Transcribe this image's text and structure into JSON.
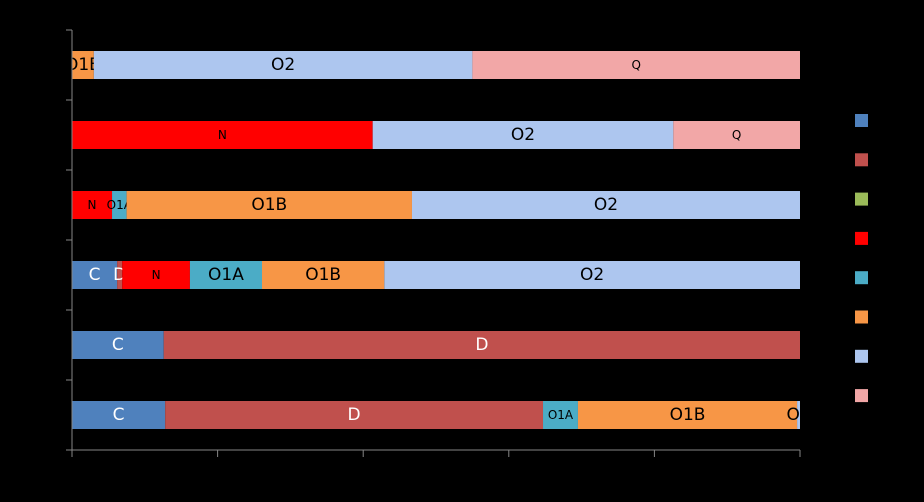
{
  "chart_data": {
    "type": "bar",
    "orientation": "horizontal",
    "stacked": "percent",
    "xlim": [
      0,
      100
    ],
    "grid": false,
    "legend_placement": "right",
    "series": [
      {
        "name": "C",
        "color": "#4f81bd",
        "values": [
          0,
          0,
          0,
          6.2,
          12.6,
          12.8
        ]
      },
      {
        "name": "D",
        "color": "#c0504d",
        "values": [
          0,
          0,
          0,
          0.7,
          87.4,
          51.9
        ]
      },
      {
        "name": "",
        "color": "#9bbb59",
        "values": [
          0,
          0,
          0,
          0,
          0,
          0
        ]
      },
      {
        "name": "N",
        "color": "#ff0000",
        "values": [
          0,
          41.3,
          5.5,
          9.3,
          0,
          0
        ]
      },
      {
        "name": "O1A",
        "color": "#4bacc6",
        "values": [
          0,
          0,
          2.0,
          9.9,
          0,
          4.8
        ]
      },
      {
        "name": "O1B",
        "color": "#f79646",
        "values": [
          3.0,
          0,
          39.2,
          16.8,
          0,
          30.1
        ]
      },
      {
        "name": "O2",
        "color": "#adc6ef",
        "values": [
          52.0,
          41.3,
          53.3,
          57.1,
          0,
          0.4
        ]
      },
      {
        "name": "Q",
        "color": "#f2a7a7",
        "values": [
          45.0,
          17.4,
          0,
          0,
          0,
          0
        ]
      }
    ]
  }
}
